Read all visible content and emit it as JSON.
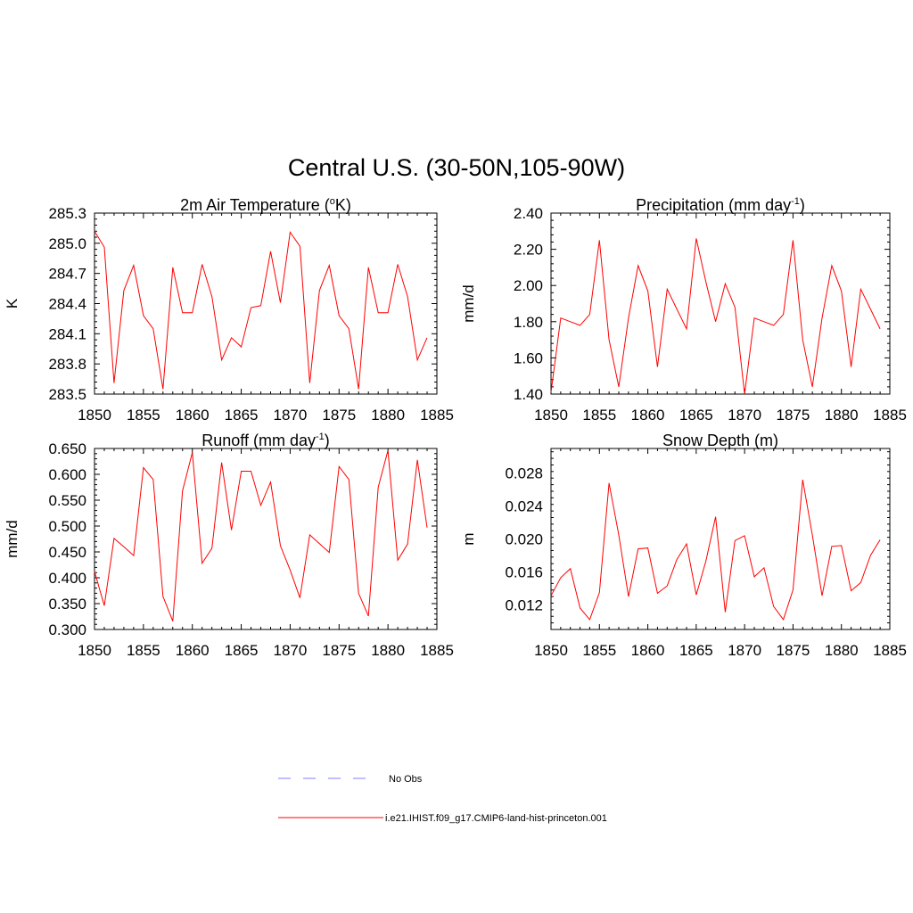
{
  "figure": {
    "title": "Central U.S. (30-50N,105-90W)"
  },
  "chart_data": [
    {
      "type": "line",
      "title_main": "2m Air Temperature (",
      "title_sup_o": "o",
      "title_after": "K)",
      "ylabel": "K",
      "xlim": [
        1850,
        1885
      ],
      "ylim": [
        283.5,
        285.3
      ],
      "xticks": [
        1850,
        1855,
        1860,
        1865,
        1870,
        1875,
        1880,
        1885
      ],
      "yticks": [
        "283.5",
        "283.8",
        "284.1",
        "284.4",
        "284.7",
        "285.0",
        "285.3"
      ],
      "x": [
        1850,
        1851,
        1852,
        1853,
        1854,
        1855,
        1856,
        1857,
        1858,
        1859,
        1860,
        1861,
        1862,
        1863,
        1864,
        1865,
        1866,
        1867,
        1868,
        1869,
        1870,
        1871,
        1872,
        1873,
        1874,
        1875,
        1876,
        1877,
        1878,
        1879,
        1880,
        1881,
        1882,
        1883,
        1884
      ],
      "series": [
        {
          "values": [
            285.12,
            284.96,
            283.61,
            284.53,
            284.78,
            284.28,
            284.15,
            283.55,
            284.76,
            284.31,
            284.31,
            284.79,
            284.47,
            283.84,
            284.06,
            283.97,
            284.36,
            284.38,
            284.92,
            284.41,
            285.11,
            284.97,
            283.61,
            284.53,
            284.78,
            284.28,
            284.15,
            283.55,
            284.76,
            284.31,
            284.31,
            284.79,
            284.47,
            283.84,
            284.06
          ]
        }
      ]
    },
    {
      "type": "line",
      "title_main": "Precipitation (mm day",
      "title_sup": "-1",
      "title_after": ")",
      "ylabel": "mm/d",
      "xlim": [
        1850,
        1885
      ],
      "ylim": [
        1.4,
        2.4
      ],
      "xticks": [
        1850,
        1855,
        1860,
        1865,
        1870,
        1875,
        1880,
        1885
      ],
      "yticks": [
        "1.40",
        "1.60",
        "1.80",
        "2.00",
        "2.20",
        "2.40"
      ],
      "x": [
        1850,
        1851,
        1852,
        1853,
        1854,
        1855,
        1856,
        1857,
        1858,
        1859,
        1860,
        1861,
        1862,
        1863,
        1864,
        1865,
        1866,
        1867,
        1868,
        1869,
        1870,
        1871,
        1872,
        1873,
        1874,
        1875,
        1876,
        1877,
        1878,
        1879,
        1880,
        1881,
        1882,
        1883,
        1884
      ],
      "series": [
        {
          "values": [
            1.41,
            1.82,
            1.8,
            1.78,
            1.84,
            2.25,
            1.7,
            1.44,
            1.82,
            2.11,
            1.97,
            1.55,
            1.98,
            1.87,
            1.76,
            2.26,
            2.02,
            1.8,
            2.01,
            1.88,
            1.4,
            1.82,
            1.8,
            1.78,
            1.84,
            2.25,
            1.7,
            1.44,
            1.82,
            2.11,
            1.97,
            1.55,
            1.98,
            1.87,
            1.76
          ]
        }
      ]
    },
    {
      "type": "line",
      "title_main": "Runoff (mm day",
      "title_sup": "-1",
      "title_after": ")",
      "ylabel": "mm/d",
      "xlim": [
        1850,
        1885
      ],
      "ylim": [
        0.3,
        0.65
      ],
      "xticks": [
        1850,
        1855,
        1860,
        1865,
        1870,
        1875,
        1880,
        1885
      ],
      "yticks": [
        "0.300",
        "0.350",
        "0.400",
        "0.450",
        "0.500",
        "0.550",
        "0.600",
        "0.650"
      ],
      "x": [
        1850,
        1851,
        1852,
        1853,
        1854,
        1855,
        1856,
        1857,
        1858,
        1859,
        1860,
        1861,
        1862,
        1863,
        1864,
        1865,
        1866,
        1867,
        1868,
        1869,
        1870,
        1871,
        1872,
        1873,
        1874,
        1875,
        1876,
        1877,
        1878,
        1879,
        1880,
        1881,
        1882,
        1883,
        1884
      ],
      "series": [
        {
          "values": [
            0.412,
            0.346,
            0.476,
            0.46,
            0.443,
            0.613,
            0.59,
            0.364,
            0.316,
            0.568,
            0.642,
            0.428,
            0.457,
            0.623,
            0.492,
            0.606,
            0.606,
            0.54,
            0.585,
            0.462,
            0.415,
            0.361,
            0.483,
            0.466,
            0.449,
            0.615,
            0.59,
            0.37,
            0.326,
            0.575,
            0.646,
            0.434,
            0.465,
            0.628,
            0.497
          ]
        }
      ]
    },
    {
      "type": "line",
      "title_main": "Snow Depth (m)",
      "ylabel": "m",
      "xlim": [
        1850,
        1885
      ],
      "ylim": [
        0.009,
        0.031
      ],
      "xticks": [
        1850,
        1855,
        1860,
        1865,
        1870,
        1875,
        1880,
        1885
      ],
      "yticks": [
        "0.012",
        "0.016",
        "0.020",
        "0.024",
        "0.028"
      ],
      "ytick_values": [
        0.012,
        0.016,
        0.02,
        0.024,
        0.028
      ],
      "x": [
        1850,
        1851,
        1852,
        1853,
        1854,
        1855,
        1856,
        1857,
        1858,
        1859,
        1860,
        1861,
        1862,
        1863,
        1864,
        1865,
        1866,
        1867,
        1868,
        1869,
        1870,
        1871,
        1872,
        1873,
        1874,
        1875,
        1876,
        1877,
        1878,
        1879,
        1880,
        1881,
        1882,
        1883,
        1884
      ],
      "series": [
        {
          "values": [
            0.0131,
            0.0153,
            0.0164,
            0.0116,
            0.0102,
            0.0135,
            0.0268,
            0.0205,
            0.013,
            0.0188,
            0.0189,
            0.0134,
            0.0143,
            0.0175,
            0.0194,
            0.0132,
            0.0173,
            0.0227,
            0.0111,
            0.0198,
            0.0204,
            0.0154,
            0.0165,
            0.0118,
            0.0102,
            0.0138,
            0.0272,
            0.0205,
            0.0131,
            0.0191,
            0.0192,
            0.0137,
            0.0147,
            0.018,
            0.0199
          ]
        }
      ]
    }
  ],
  "legend": {
    "entries": [
      {
        "label": "No Obs",
        "color": "#9999ff",
        "style": "dashed"
      },
      {
        "label": "i.e21.IHIST.f09_g17.CMIP6-land-hist-princeton.001",
        "color": "#ff0000",
        "style": "solid"
      }
    ]
  }
}
